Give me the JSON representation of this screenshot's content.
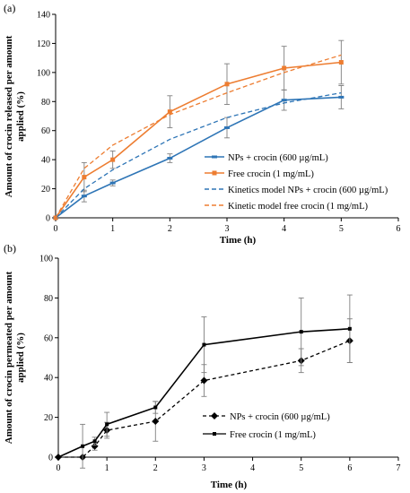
{
  "chart_data": [
    {
      "type": "line",
      "panel_label": "(a)",
      "xlabel": "Time (h)",
      "ylabel_lines": [
        "Amount of crocin released per amount",
        "applied (%)"
      ],
      "xlim": [
        0,
        6
      ],
      "ylim": [
        0,
        140
      ],
      "xticks": [
        0,
        1,
        2,
        3,
        4,
        5,
        6
      ],
      "yticks": [
        0,
        20,
        40,
        60,
        80,
        100,
        120,
        140
      ],
      "legend_position": "bottom-right",
      "series": [
        {
          "name": "NPs + crocin (600 µg/mL)",
          "color": "#2E75B6",
          "style": "solid",
          "marker": "dash",
          "x": [
            0,
            0.5,
            1,
            2,
            3,
            4,
            5
          ],
          "y": [
            0,
            15,
            24,
            41,
            62,
            81,
            83
          ],
          "err": [
            0,
            4,
            2,
            3,
            7,
            7,
            8
          ]
        },
        {
          "name": "Free crocin (1 mg/mL)",
          "color": "#ED7D31",
          "style": "solid",
          "marker": "square",
          "x": [
            0,
            0.5,
            1,
            2,
            3,
            4,
            5
          ],
          "y": [
            0,
            28,
            40,
            73,
            92,
            103,
            107
          ],
          "err": [
            0,
            10,
            6,
            11,
            14,
            15,
            15
          ]
        },
        {
          "name": "Kinetics model NPs + crocin (600 µg/mL)",
          "color": "#2E75B6",
          "style": "dashed",
          "marker": "none",
          "x": [
            0,
            0.5,
            1,
            2,
            3,
            4,
            5
          ],
          "y": [
            0,
            20,
            33,
            54,
            69,
            79,
            86
          ],
          "err": []
        },
        {
          "name": "Kinetic model free crocin (1 mg/mL)",
          "color": "#ED7D31",
          "style": "dashed",
          "marker": "none",
          "x": [
            0,
            0.5,
            1,
            2,
            3,
            4,
            5
          ],
          "y": [
            0,
            34,
            50,
            71,
            86,
            100,
            112
          ],
          "err": []
        }
      ]
    },
    {
      "type": "line",
      "panel_label": "(b)",
      "xlabel": "Time (h)",
      "ylabel_lines": [
        "Amount of crocin permeated per amount",
        "applied (%)"
      ],
      "xlim": [
        0,
        7
      ],
      "ylim": [
        0,
        100
      ],
      "xticks": [
        0,
        1,
        2,
        3,
        4,
        5,
        6,
        7
      ],
      "yticks": [
        0,
        20,
        40,
        60,
        80,
        100
      ],
      "legend_position": "bottom-right",
      "series": [
        {
          "name": "NPs + crocin (600 µg/mL)",
          "color": "#000000",
          "style": "dashed",
          "marker": "diamond",
          "x": [
            0,
            0.5,
            0.75,
            1,
            2,
            3,
            5,
            6
          ],
          "y": [
            0,
            0,
            5.5,
            13.5,
            18,
            38.5,
            48.5,
            58.5
          ],
          "err": [
            0,
            0,
            2,
            4,
            10,
            8,
            6,
            11
          ]
        },
        {
          "name": "Free crocin (1 mg/mL)",
          "color": "#000000",
          "style": "solid",
          "marker": "square",
          "x": [
            0,
            0.5,
            0.75,
            1,
            2,
            3,
            5,
            6
          ],
          "y": [
            0,
            5.5,
            8,
            16.5,
            25,
            56.5,
            63,
            64.5
          ],
          "err": [
            0,
            11,
            2,
            6,
            3,
            14,
            17,
            17
          ]
        }
      ]
    }
  ]
}
